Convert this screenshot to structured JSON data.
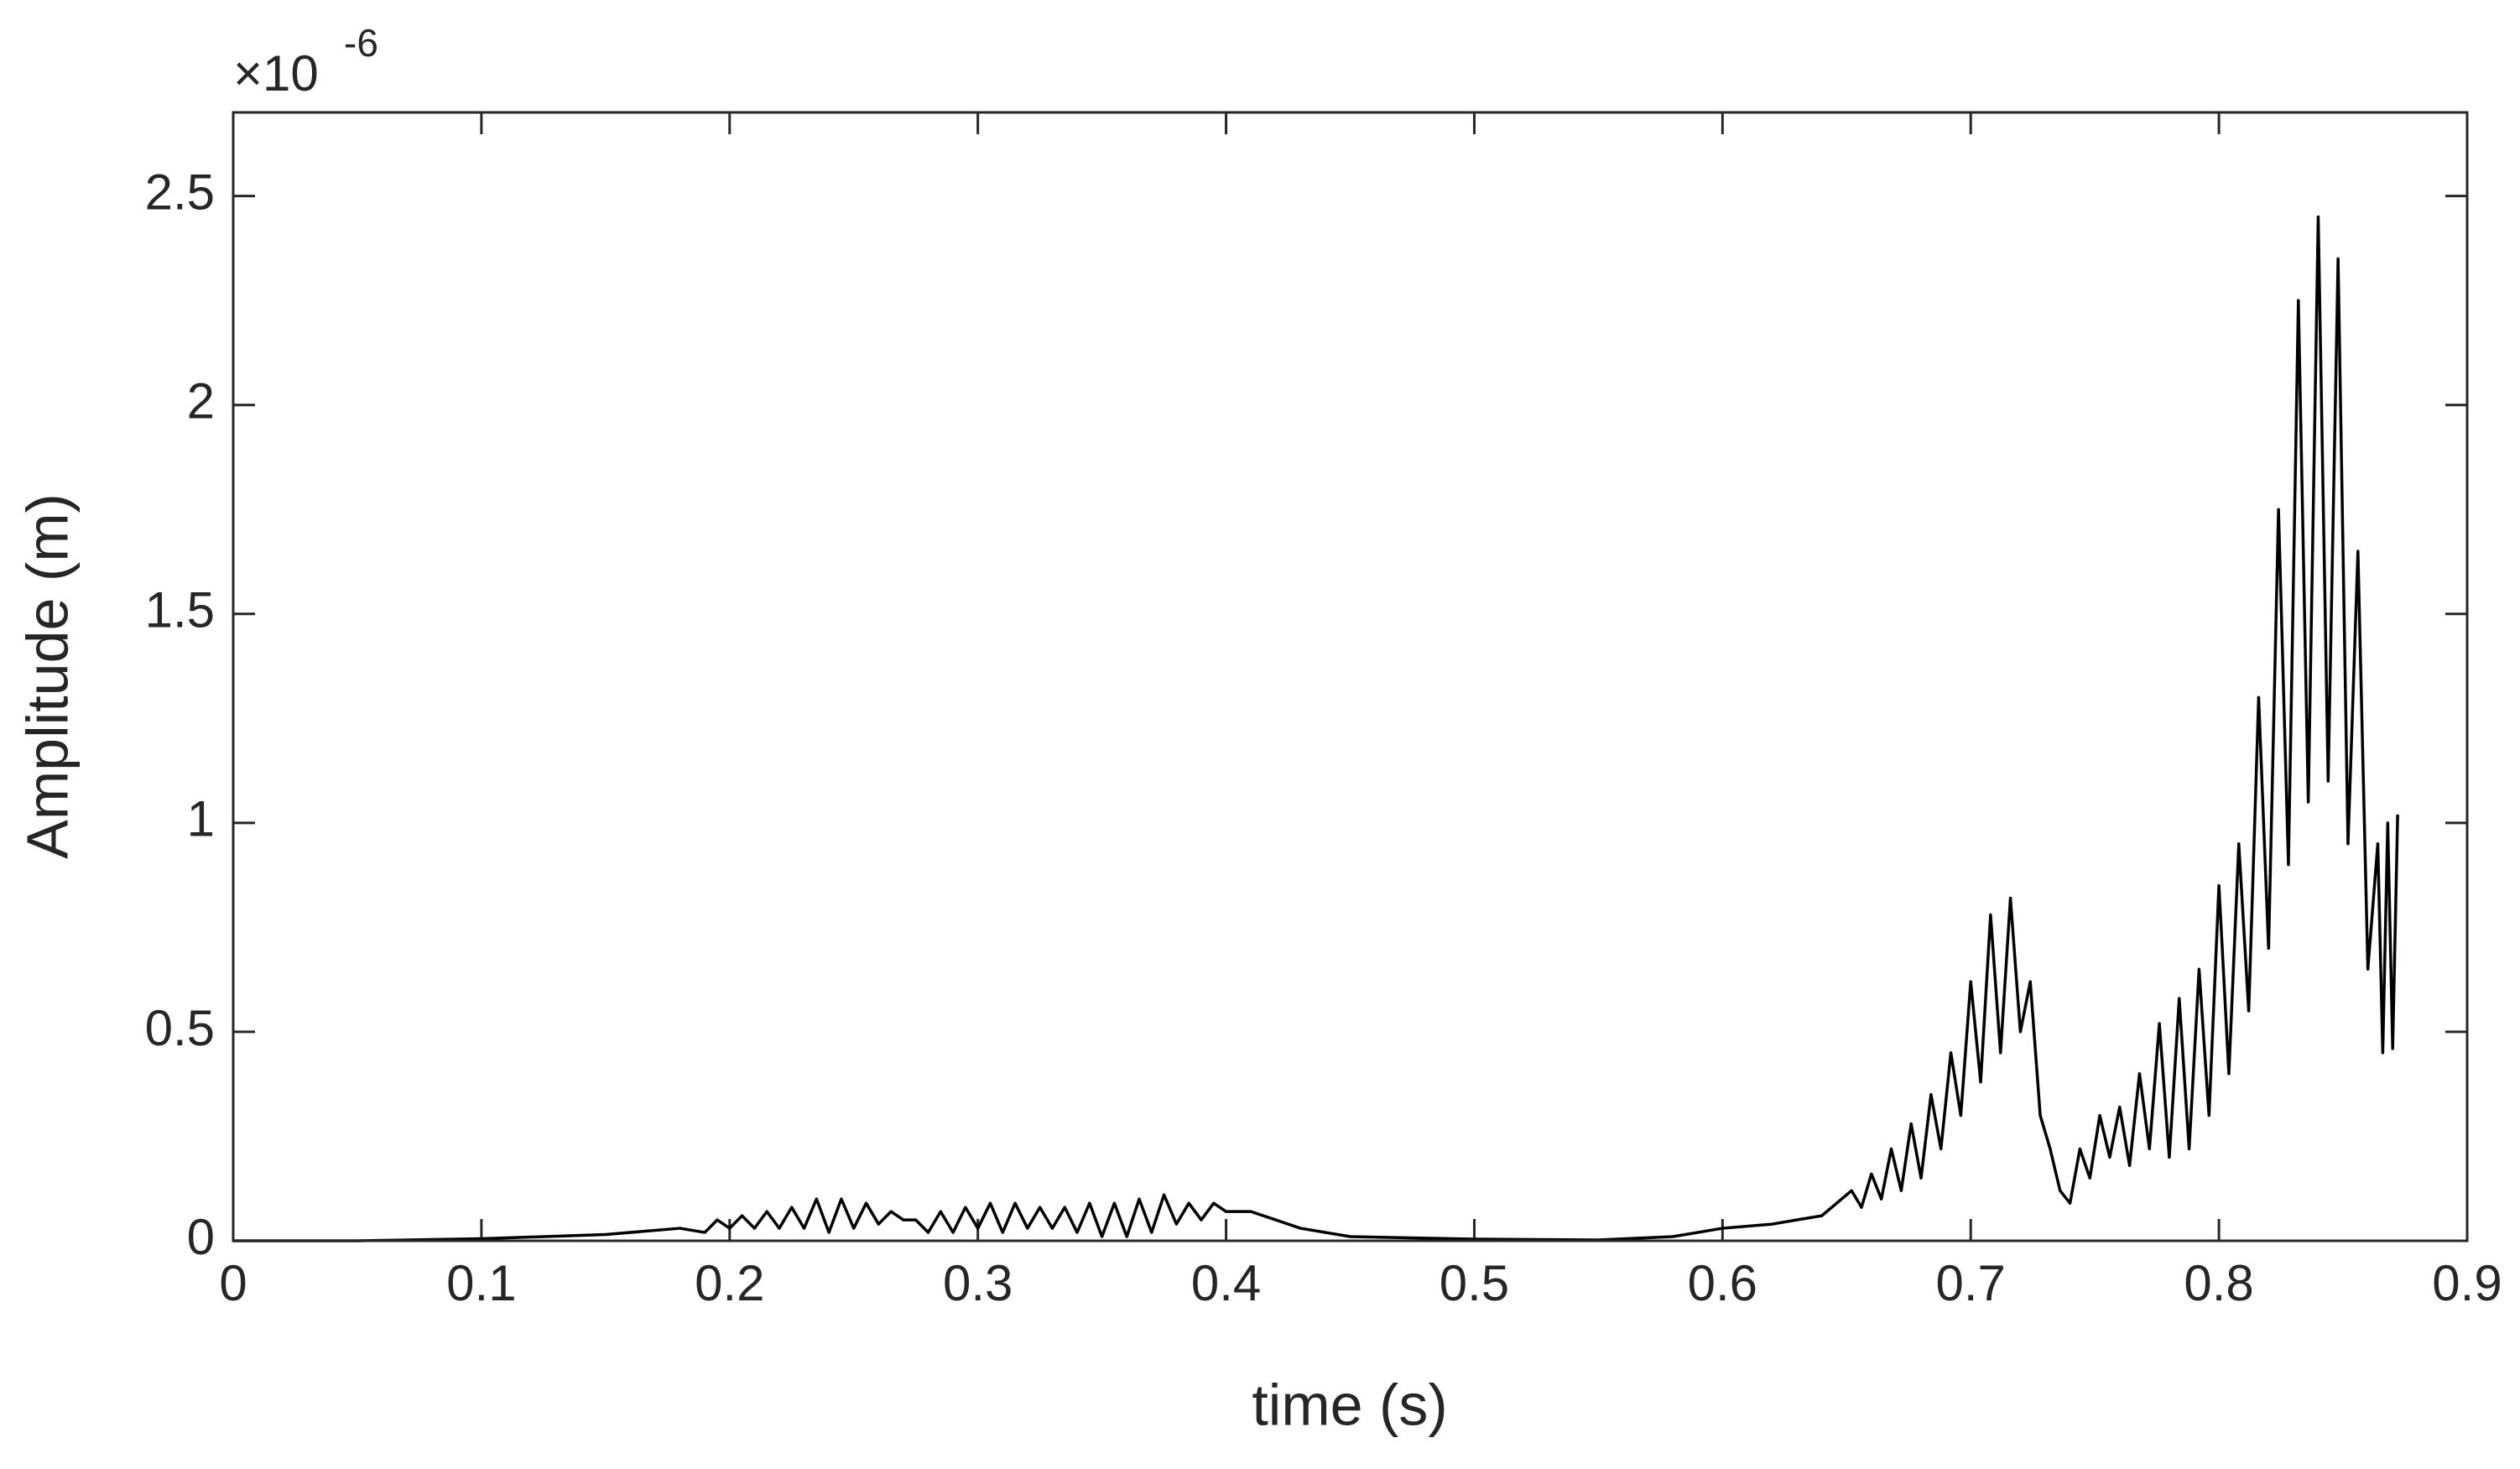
{
  "chart_data": {
    "type": "line",
    "xlabel": "time (s)",
    "ylabel": "Amplitude (m)",
    "y_exponent_base": "×10",
    "y_exponent_power": "-6",
    "xlim": [
      0,
      0.9
    ],
    "xticks": [
      0,
      0.1,
      0.2,
      0.3,
      0.4,
      0.5,
      0.6,
      0.7,
      0.8,
      0.9
    ],
    "ylim": [
      0,
      2.7
    ],
    "yticks": [
      0,
      0.5,
      1,
      1.5,
      2,
      2.5
    ],
    "series": [
      {
        "color": "#000000",
        "x": [
          0,
          0.05,
          0.1,
          0.15,
          0.18,
          0.19,
          0.195,
          0.2,
          0.205,
          0.21,
          0.215,
          0.22,
          0.225,
          0.23,
          0.235,
          0.24,
          0.245,
          0.25,
          0.255,
          0.26,
          0.265,
          0.27,
          0.275,
          0.28,
          0.285,
          0.29,
          0.295,
          0.3,
          0.305,
          0.31,
          0.315,
          0.32,
          0.325,
          0.33,
          0.335,
          0.34,
          0.345,
          0.35,
          0.355,
          0.36,
          0.365,
          0.37,
          0.375,
          0.38,
          0.385,
          0.39,
          0.395,
          0.4,
          0.41,
          0.42,
          0.43,
          0.45,
          0.5,
          0.55,
          0.58,
          0.6,
          0.62,
          0.64,
          0.652,
          0.656,
          0.66,
          0.664,
          0.668,
          0.672,
          0.676,
          0.68,
          0.684,
          0.688,
          0.692,
          0.696,
          0.7,
          0.704,
          0.708,
          0.712,
          0.716,
          0.72,
          0.724,
          0.728,
          0.732,
          0.736,
          0.74,
          0.744,
          0.748,
          0.752,
          0.756,
          0.76,
          0.764,
          0.768,
          0.772,
          0.776,
          0.78,
          0.784,
          0.788,
          0.792,
          0.796,
          0.8,
          0.804,
          0.808,
          0.812,
          0.816,
          0.82,
          0.824,
          0.828,
          0.832,
          0.836,
          0.84,
          0.844,
          0.848,
          0.852,
          0.856,
          0.86,
          0.864,
          0.866,
          0.868,
          0.87,
          0.872
        ],
        "values": [
          0,
          0,
          0.005,
          0.015,
          0.03,
          0.02,
          0.05,
          0.03,
          0.06,
          0.03,
          0.07,
          0.03,
          0.08,
          0.03,
          0.1,
          0.02,
          0.1,
          0.03,
          0.09,
          0.04,
          0.07,
          0.05,
          0.05,
          0.02,
          0.07,
          0.02,
          0.08,
          0.03,
          0.09,
          0.02,
          0.09,
          0.03,
          0.08,
          0.03,
          0.08,
          0.02,
          0.09,
          0.01,
          0.09,
          0.01,
          0.1,
          0.02,
          0.11,
          0.04,
          0.09,
          0.05,
          0.09,
          0.07,
          0.07,
          0.05,
          0.03,
          0.01,
          0.004,
          0.002,
          0.01,
          0.03,
          0.04,
          0.06,
          0.12,
          0.08,
          0.16,
          0.1,
          0.22,
          0.12,
          0.28,
          0.15,
          0.35,
          0.22,
          0.45,
          0.3,
          0.62,
          0.38,
          0.78,
          0.45,
          0.82,
          0.5,
          0.62,
          0.3,
          0.22,
          0.12,
          0.09,
          0.22,
          0.15,
          0.3,
          0.2,
          0.32,
          0.18,
          0.4,
          0.22,
          0.52,
          0.2,
          0.58,
          0.22,
          0.65,
          0.3,
          0.85,
          0.4,
          0.95,
          0.55,
          1.3,
          0.7,
          1.75,
          0.9,
          2.25,
          1.05,
          2.45,
          1.1,
          2.35,
          0.95,
          1.65,
          0.65,
          0.95,
          0.45,
          1.0,
          0.46,
          1.02
        ]
      }
    ]
  }
}
